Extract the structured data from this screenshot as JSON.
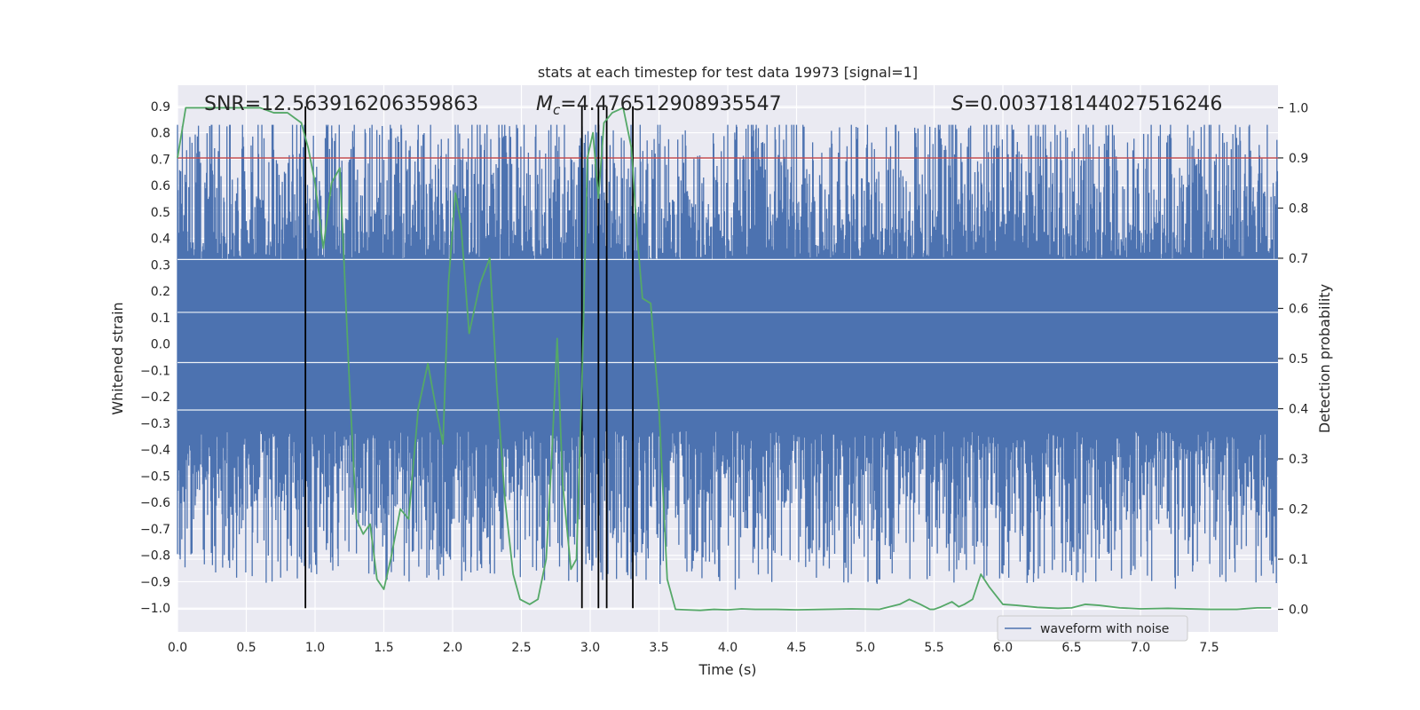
{
  "chart_data": {
    "type": "line",
    "title": "stats at each timestep for test data 19973 [signal=1]",
    "xlabel": "Time (s)",
    "ylabel_left": "Whitened strain",
    "ylabel_right": "Detection probability",
    "xlim": [
      0.0,
      8.0
    ],
    "ylim_left": [
      -1.09,
      0.98
    ],
    "ylim_right": [
      -0.045,
      1.045
    ],
    "x_ticks": [
      0.0,
      0.5,
      1.0,
      1.5,
      2.0,
      2.5,
      3.0,
      3.5,
      4.0,
      4.5,
      5.0,
      5.5,
      6.0,
      6.5,
      7.0,
      7.5
    ],
    "x_tick_labels": [
      "0.0",
      "0.5",
      "1.0",
      "1.5",
      "2.0",
      "2.5",
      "3.0",
      "3.5",
      "4.0",
      "4.5",
      "5.0",
      "5.5",
      "6.0",
      "6.5",
      "7.0",
      "7.5"
    ],
    "y_left_ticks": [
      0.9,
      0.8,
      0.7,
      0.6,
      0.5,
      0.4,
      0.3,
      0.2,
      0.1,
      0.0,
      -0.1,
      -0.2,
      -0.3,
      -0.4,
      -0.5,
      -0.6,
      -0.7,
      -0.8,
      -0.9,
      -1.0
    ],
    "y_left_tick_labels": [
      "0.9",
      "0.8",
      "0.7",
      "0.6",
      "0.5",
      "0.4",
      "0.3",
      "0.2",
      "0.1",
      "0.0",
      "−0.1",
      "−0.2",
      "−0.3",
      "−0.4",
      "−0.5",
      "−0.6",
      "−0.7",
      "−0.8",
      "−0.9",
      "−1.0"
    ],
    "y_right_ticks": [
      1.0,
      0.9,
      0.8,
      0.7,
      0.6,
      0.5,
      0.4,
      0.3,
      0.2,
      0.1,
      0.0
    ],
    "y_right_tick_labels": [
      "1.0",
      "0.9",
      "0.8",
      "0.7",
      "0.6",
      "0.5",
      "0.4",
      "0.3",
      "0.2",
      "0.1",
      "0.0"
    ],
    "grid": true,
    "annotations": {
      "snr": "SNR=12.563916206359863",
      "mc_symbol": "M",
      "mc_sub": "c",
      "mc_value": "=4.476512908935547",
      "s_symbol": "S",
      "s_value": "=0.003718144027516246"
    },
    "threshold": {
      "value": 0.9,
      "axis": "right",
      "color": "#c44e52"
    },
    "vertical_lines": [
      0.93,
      2.94,
      3.06,
      3.12,
      3.31
    ],
    "waveform": {
      "name": "waveform with noise",
      "color": "#4c72b0",
      "duration": 8.0,
      "n_samples": 2048,
      "band_low": -0.33,
      "band_high": 0.32,
      "seed": 19973
    },
    "detection_probability": {
      "color": "#55a868",
      "x": [
        0.0,
        0.06,
        0.12,
        0.2,
        0.3,
        0.4,
        0.5,
        0.6,
        0.7,
        0.8,
        0.85,
        0.9,
        0.95,
        1.0,
        1.06,
        1.12,
        1.18,
        1.25,
        1.3,
        1.35,
        1.4,
        1.45,
        1.5,
        1.55,
        1.62,
        1.68,
        1.75,
        1.82,
        1.88,
        1.93,
        1.97,
        2.02,
        2.06,
        2.12,
        2.2,
        2.27,
        2.32,
        2.38,
        2.44,
        2.49,
        2.56,
        2.62,
        2.68,
        2.72,
        2.76,
        2.8,
        2.86,
        2.9,
        2.94,
        2.98,
        3.02,
        3.06,
        3.1,
        3.16,
        3.24,
        3.3,
        3.34,
        3.38,
        3.44,
        3.5,
        3.56,
        3.62,
        3.7,
        3.8,
        3.9,
        4.0,
        4.1,
        4.2,
        4.35,
        4.5,
        4.7,
        4.9,
        5.1,
        5.25,
        5.32,
        5.4,
        5.47,
        5.5,
        5.55,
        5.63,
        5.68,
        5.72,
        5.78,
        5.84,
        5.9,
        6.0,
        6.1,
        6.25,
        6.4,
        6.5,
        6.6,
        6.7,
        6.85,
        7.0,
        7.2,
        7.5,
        7.7,
        7.85,
        7.95
      ],
      "y": [
        0.9,
        1.0,
        1.0,
        1.0,
        1.0,
        1.0,
        1.0,
        1.0,
        0.99,
        0.99,
        0.98,
        0.97,
        0.92,
        0.85,
        0.72,
        0.85,
        0.88,
        0.45,
        0.18,
        0.15,
        0.17,
        0.06,
        0.04,
        0.1,
        0.2,
        0.18,
        0.4,
        0.49,
        0.4,
        0.33,
        0.65,
        0.83,
        0.77,
        0.55,
        0.65,
        0.7,
        0.45,
        0.22,
        0.07,
        0.02,
        0.01,
        0.02,
        0.1,
        0.3,
        0.54,
        0.25,
        0.08,
        0.1,
        0.45,
        0.9,
        0.95,
        0.82,
        0.97,
        0.99,
        1.0,
        0.92,
        0.75,
        0.62,
        0.61,
        0.4,
        0.06,
        0.0,
        -0.001,
        -0.002,
        0.0,
        -0.001,
        0.001,
        0.0,
        0.0,
        -0.001,
        0.0,
        0.001,
        0.0,
        0.01,
        0.02,
        0.01,
        0.0,
        0.0,
        0.005,
        0.015,
        0.005,
        0.01,
        0.02,
        0.07,
        0.045,
        0.01,
        0.008,
        0.004,
        0.002,
        0.003,
        0.01,
        0.008,
        0.003,
        0.001,
        0.002,
        0.0,
        0.0,
        0.003,
        0.003
      ]
    },
    "legend": {
      "position": "lower-right",
      "entries": [
        "waveform with noise"
      ]
    }
  }
}
